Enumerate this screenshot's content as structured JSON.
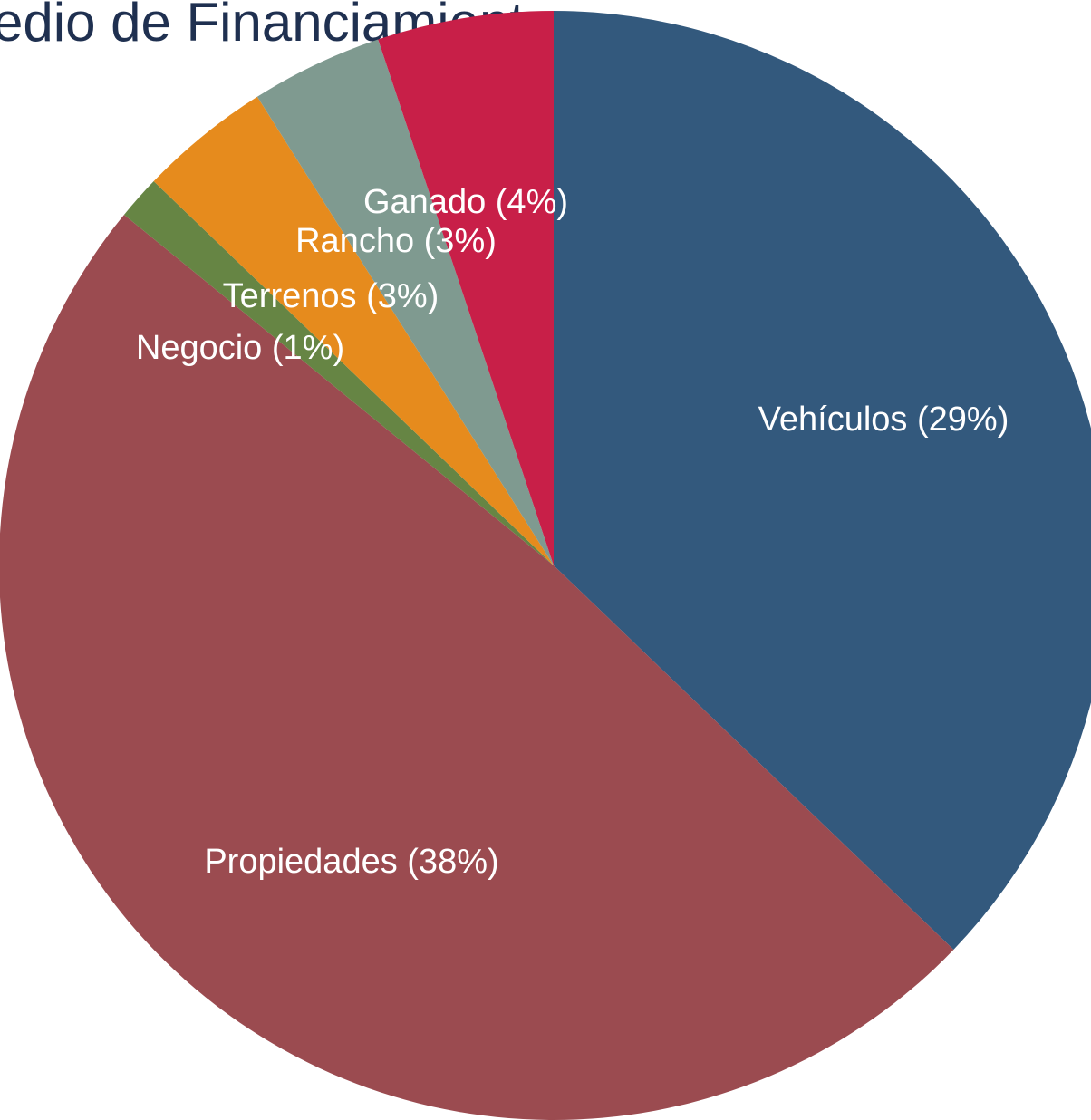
{
  "chart_data": {
    "type": "pie",
    "title": "edio de Financiamiento",
    "categories": [
      "Vehículos",
      "Propiedades",
      "Negocio",
      "Terrenos",
      "Rancho",
      "Ganado"
    ],
    "values": [
      29,
      38,
      1,
      3,
      3,
      4
    ],
    "value_labels": [
      "(29%)",
      "(38%)",
      "(1%)",
      "(3%)",
      "(3%)",
      "(4%)"
    ],
    "colors": [
      "#33597d",
      "#9b4b50",
      "#668544",
      "#e68b1d",
      "#7f9a90",
      "#c81f48"
    ]
  }
}
